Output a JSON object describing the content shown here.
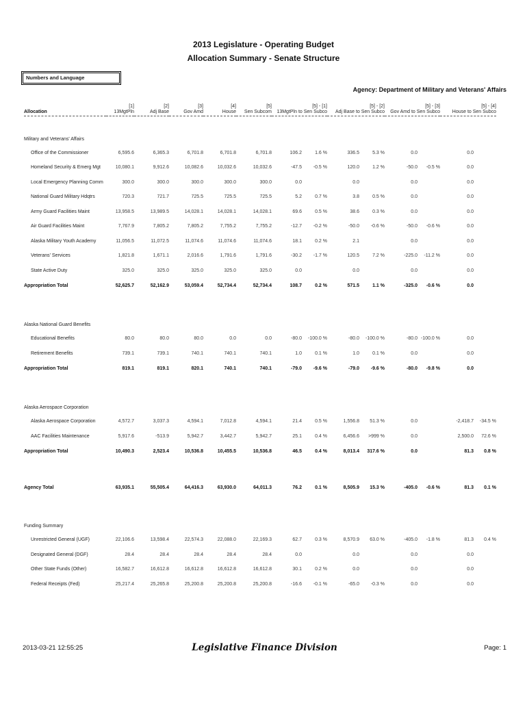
{
  "header": {
    "title_line1": "2013 Legislature - Operating Budget",
    "title_line2": "Allocation Summary - Senate Structure",
    "filter_box": "Numbers and Language",
    "agency": "Agency: Department of Military and Veterans' Affairs"
  },
  "table": {
    "allocation_header": "Allocation",
    "columns": [
      {
        "ref": "[1]",
        "label": "13MgtPln"
      },
      {
        "ref": "[2]",
        "label": "Adj Base"
      },
      {
        "ref": "[3]",
        "label": "Gov Amd"
      },
      {
        "ref": "[4]",
        "label": "House"
      },
      {
        "ref": "[5]",
        "label": "Sen Subcom"
      }
    ],
    "diff_columns": [
      {
        "ref": "[5] - [1]",
        "label": "13MgtPln to Sen Subco"
      },
      {
        "ref": "[5] - [2]",
        "label": "Adj Base to Sen Subco"
      },
      {
        "ref": "[5] - [3]",
        "label": "Gov Amd to Sen Subco"
      },
      {
        "ref": "[5] - [4]",
        "label": "House to Sen Subco"
      }
    ],
    "sections": [
      {
        "title": "Military and Veterans' Affairs",
        "rows": [
          {
            "label": "Office of the Commissioner",
            "values": [
              "6,595.6",
              "6,365.3",
              "6,701.8",
              "6,701.8",
              "6,701.8"
            ],
            "diffs": [
              [
                "106.2",
                "1.6 %"
              ],
              [
                "336.5",
                "5.3 %"
              ],
              [
                "0.0",
                ""
              ],
              [
                "0.0",
                ""
              ]
            ]
          },
          {
            "label": "Homeland Security & Emerg Mgt",
            "values": [
              "10,080.1",
              "9,912.6",
              "10,082.6",
              "10,032.6",
              "10,032.6"
            ],
            "diffs": [
              [
                "-47.5",
                "-0.5 %"
              ],
              [
                "120.0",
                "1.2 %"
              ],
              [
                "-50.0",
                "-0.5 %"
              ],
              [
                "0.0",
                ""
              ]
            ]
          },
          {
            "label": "Local Emergency Planning Comm",
            "values": [
              "300.0",
              "300.0",
              "300.0",
              "300.0",
              "300.0"
            ],
            "diffs": [
              [
                "0.0",
                ""
              ],
              [
                "0.0",
                ""
              ],
              [
                "0.0",
                ""
              ],
              [
                "0.0",
                ""
              ]
            ]
          },
          {
            "label": "National Guard Military Hdqtrs",
            "values": [
              "720.3",
              "721.7",
              "725.5",
              "725.5",
              "725.5"
            ],
            "diffs": [
              [
                "5.2",
                "0.7 %"
              ],
              [
                "3.8",
                "0.5 %"
              ],
              [
                "0.0",
                ""
              ],
              [
                "0.0",
                ""
              ]
            ]
          },
          {
            "label": "Army Guard Facilities Maint",
            "values": [
              "13,958.5",
              "13,989.5",
              "14,028.1",
              "14,028.1",
              "14,028.1"
            ],
            "diffs": [
              [
                "69.6",
                "0.5 %"
              ],
              [
                "38.6",
                "0.3 %"
              ],
              [
                "0.0",
                ""
              ],
              [
                "0.0",
                ""
              ]
            ]
          },
          {
            "label": "Air Guard Facilities Maint",
            "values": [
              "7,767.9",
              "7,805.2",
              "7,805.2",
              "7,755.2",
              "7,755.2"
            ],
            "diffs": [
              [
                "-12.7",
                "-0.2 %"
              ],
              [
                "-50.0",
                "-0.6 %"
              ],
              [
                "-50.0",
                "-0.6 %"
              ],
              [
                "0.0",
                ""
              ]
            ]
          },
          {
            "label": "Alaska Military Youth Academy",
            "values": [
              "11,056.5",
              "11,072.5",
              "11,074.6",
              "11,074.6",
              "11,074.6"
            ],
            "diffs": [
              [
                "18.1",
                "0.2 %"
              ],
              [
                "2.1",
                ""
              ],
              [
                "0.0",
                ""
              ],
              [
                "0.0",
                ""
              ]
            ]
          },
          {
            "label": "Veterans' Services",
            "values": [
              "1,821.8",
              "1,671.1",
              "2,016.6",
              "1,791.6",
              "1,791.6"
            ],
            "diffs": [
              [
                "-30.2",
                "-1.7 %"
              ],
              [
                "120.5",
                "7.2 %"
              ],
              [
                "-225.0",
                "-11.2 %"
              ],
              [
                "0.0",
                ""
              ]
            ]
          },
          {
            "label": "State Active Duty",
            "values": [
              "325.0",
              "325.0",
              "325.0",
              "325.0",
              "325.0"
            ],
            "diffs": [
              [
                "0.0",
                ""
              ],
              [
                "0.0",
                ""
              ],
              [
                "0.0",
                ""
              ],
              [
                "0.0",
                ""
              ]
            ]
          }
        ],
        "total": {
          "label": "Appropriation Total",
          "values": [
            "52,625.7",
            "52,162.9",
            "53,059.4",
            "52,734.4",
            "52,734.4"
          ],
          "diffs": [
            [
              "108.7",
              "0.2 %"
            ],
            [
              "571.5",
              "1.1 %"
            ],
            [
              "-325.0",
              "-0.6 %"
            ],
            [
              "0.0",
              ""
            ]
          ]
        }
      },
      {
        "title": "Alaska National Guard Benefits",
        "rows": [
          {
            "label": "Educational Benefits",
            "values": [
              "80.0",
              "80.0",
              "80.0",
              "0.0",
              "0.0"
            ],
            "diffs": [
              [
                "-80.0",
                "-100.0 %"
              ],
              [
                "-80.0",
                "-100.0 %"
              ],
              [
                "-80.0",
                "-100.0 %"
              ],
              [
                "0.0",
                ""
              ]
            ]
          },
          {
            "label": "Retirement Benefits",
            "values": [
              "739.1",
              "739.1",
              "740.1",
              "740.1",
              "740.1"
            ],
            "diffs": [
              [
                "1.0",
                "0.1 %"
              ],
              [
                "1.0",
                "0.1 %"
              ],
              [
                "0.0",
                ""
              ],
              [
                "0.0",
                ""
              ]
            ]
          }
        ],
        "total": {
          "label": "Appropriation Total",
          "values": [
            "819.1",
            "819.1",
            "820.1",
            "740.1",
            "740.1"
          ],
          "diffs": [
            [
              "-79.0",
              "-9.6 %"
            ],
            [
              "-79.0",
              "-9.6 %"
            ],
            [
              "-80.0",
              "-9.8 %"
            ],
            [
              "0.0",
              ""
            ]
          ]
        }
      },
      {
        "title": "Alaska Aerospace Corporation",
        "rows": [
          {
            "label": "Alaska Aerospace Corporation",
            "values": [
              "4,572.7",
              "3,037.3",
              "4,594.1",
              "7,012.8",
              "4,594.1"
            ],
            "diffs": [
              [
                "21.4",
                "0.5 %"
              ],
              [
                "1,556.8",
                "51.3 %"
              ],
              [
                "0.0",
                ""
              ],
              [
                "-2,418.7",
                "-34.5 %"
              ]
            ]
          },
          {
            "label": "AAC Facilities Maintenance",
            "values": [
              "5,917.6",
              "-513.9",
              "5,942.7",
              "3,442.7",
              "5,942.7"
            ],
            "diffs": [
              [
                "25.1",
                "0.4 %"
              ],
              [
                "6,456.6",
                ">999 %"
              ],
              [
                "0.0",
                ""
              ],
              [
                "2,500.0",
                "72.6 %"
              ]
            ]
          }
        ],
        "total": {
          "label": "Appropriation Total",
          "values": [
            "10,490.3",
            "2,523.4",
            "10,536.8",
            "10,455.5",
            "10,536.8"
          ],
          "diffs": [
            [
              "46.5",
              "0.4 %"
            ],
            [
              "8,013.4",
              "317.6 %"
            ],
            [
              "0.0",
              ""
            ],
            [
              "81.3",
              "0.8 %"
            ]
          ]
        }
      }
    ],
    "agency_total": {
      "label": "Agency Total",
      "values": [
        "63,935.1",
        "55,505.4",
        "64,416.3",
        "63,930.0",
        "64,011.3"
      ],
      "diffs": [
        [
          "76.2",
          "0.1 %"
        ],
        [
          "8,505.9",
          "15.3 %"
        ],
        [
          "-405.0",
          "-0.6 %"
        ],
        [
          "81.3",
          "0.1 %"
        ]
      ]
    },
    "funding": {
      "title": "Funding Summary",
      "rows": [
        {
          "label": "Unrestricted General (UGF)",
          "values": [
            "22,106.6",
            "13,598.4",
            "22,574.3",
            "22,088.0",
            "22,169.3"
          ],
          "diffs": [
            [
              "62.7",
              "0.3 %"
            ],
            [
              "8,570.9",
              "63.0 %"
            ],
            [
              "-405.0",
              "-1.8 %"
            ],
            [
              "81.3",
              "0.4 %"
            ]
          ]
        },
        {
          "label": "Designated General (DGF)",
          "values": [
            "28.4",
            "28.4",
            "28.4",
            "28.4",
            "28.4"
          ],
          "diffs": [
            [
              "0.0",
              ""
            ],
            [
              "0.0",
              ""
            ],
            [
              "0.0",
              ""
            ],
            [
              "0.0",
              ""
            ]
          ]
        },
        {
          "label": "Other State Funds (Other)",
          "values": [
            "16,582.7",
            "16,612.8",
            "16,612.8",
            "16,612.8",
            "16,612.8"
          ],
          "diffs": [
            [
              "30.1",
              "0.2 %"
            ],
            [
              "0.0",
              ""
            ],
            [
              "0.0",
              ""
            ],
            [
              "0.0",
              ""
            ]
          ]
        },
        {
          "label": "Federal Receipts (Fed)",
          "values": [
            "25,217.4",
            "25,265.8",
            "25,200.8",
            "25,200.8",
            "25,200.8"
          ],
          "diffs": [
            [
              "-16.6",
              "-0.1 %"
            ],
            [
              "-65.0",
              "-0.3 %"
            ],
            [
              "0.0",
              ""
            ],
            [
              "0.0",
              ""
            ]
          ]
        }
      ]
    }
  },
  "footer": {
    "timestamp": "2013-03-21 12:55:25",
    "org": "Legislative Finance Division",
    "page": "Page: 1"
  }
}
